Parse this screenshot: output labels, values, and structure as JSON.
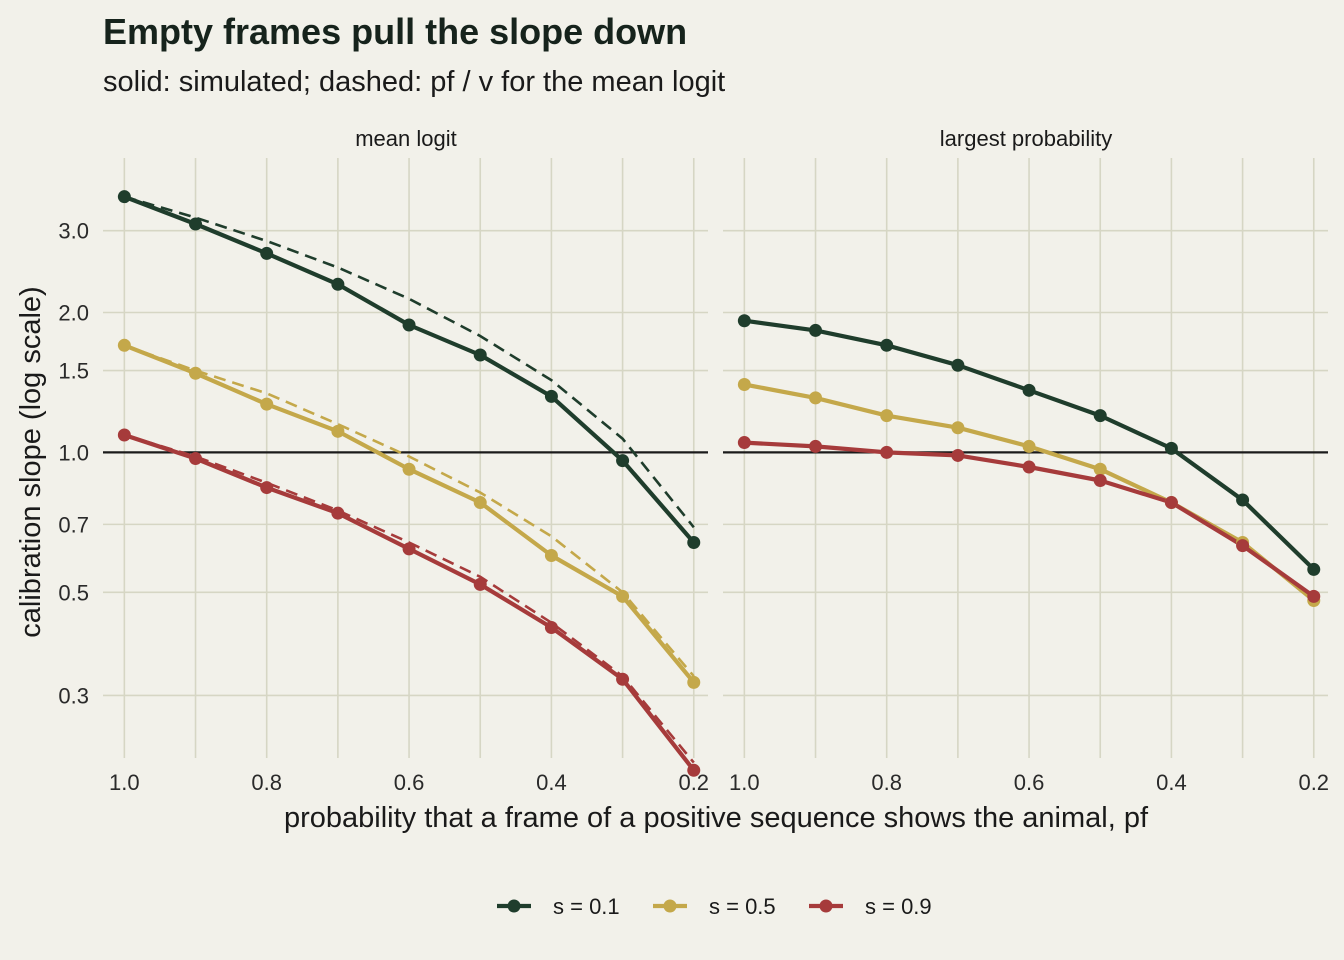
{
  "chart_data": {
    "type": "line",
    "title": "Empty frames pull the slope down",
    "subtitle": "solid: simulated; dashed: pf / v for the mean logit",
    "xlabel": "probability that a frame of a positive sequence shows the animal, pf",
    "ylabel": "calibration slope (log scale)",
    "y_scale": "log",
    "x_reversed": true,
    "xlim": [
      1.03,
      0.18
    ],
    "ylim": [
      0.22,
      4.3
    ],
    "x_ticks": [
      1.0,
      0.8,
      0.6,
      0.4,
      0.2
    ],
    "x_tick_labels": [
      "1.0",
      "0.8",
      "0.6",
      "0.4",
      "0.2"
    ],
    "y_ticks": [
      0.3,
      0.5,
      0.7,
      1.0,
      1.5,
      2.0,
      3.0
    ],
    "y_tick_labels": [
      "0.3",
      "0.5",
      "0.7",
      "1.0",
      "1.5",
      "2.0",
      "3.0"
    ],
    "reference_line": 1.0,
    "grid": true,
    "legend_position": "bottom",
    "x": [
      1.0,
      0.9,
      0.8,
      0.7,
      0.6,
      0.5,
      0.4,
      0.3,
      0.2
    ],
    "panels": [
      {
        "label": "mean logit",
        "series": [
          {
            "name": "s = 0.1",
            "color": "#1f3d2c",
            "values": [
              3.55,
              3.1,
              2.68,
              2.3,
              1.88,
              1.62,
              1.32,
              0.96,
              0.64
            ]
          },
          {
            "name": "s = 0.5",
            "color": "#c4a84a",
            "values": [
              1.7,
              1.48,
              1.27,
              1.11,
              0.92,
              0.78,
              0.6,
              0.49,
              0.32
            ]
          },
          {
            "name": "s = 0.9",
            "color": "#a63b3b",
            "values": [
              1.09,
              0.97,
              0.84,
              0.74,
              0.62,
              0.52,
              0.42,
              0.325,
              0.207
            ]
          }
        ],
        "dashed": [
          {
            "color": "#1f3d2c",
            "values": [
              3.55,
              3.2,
              2.85,
              2.5,
              2.14,
              1.78,
              1.43,
              1.07,
              0.69
            ]
          },
          {
            "color": "#c4a84a",
            "values": [
              1.7,
              1.5,
              1.34,
              1.15,
              0.98,
              0.82,
              0.66,
              0.5,
              0.33
            ]
          },
          {
            "color": "#a63b3b",
            "values": [
              1.09,
              0.98,
              0.86,
              0.75,
              0.64,
              0.54,
              0.43,
              0.33,
              0.215
            ]
          }
        ]
      },
      {
        "label": "largest probability",
        "series": [
          {
            "name": "s = 0.1",
            "color": "#1f3d2c",
            "values": [
              1.92,
              1.83,
              1.7,
              1.54,
              1.36,
              1.2,
              1.02,
              0.79,
              0.56
            ]
          },
          {
            "name": "s = 0.5",
            "color": "#c4a84a",
            "values": [
              1.4,
              1.31,
              1.2,
              1.13,
              1.03,
              0.92,
              0.78,
              0.64,
              0.48
            ]
          },
          {
            "name": "s = 0.9",
            "color": "#a63b3b",
            "values": [
              1.05,
              1.03,
              1.0,
              0.985,
              0.93,
              0.87,
              0.78,
              0.63,
              0.49
            ]
          }
        ],
        "dashed": []
      }
    ],
    "legend": [
      {
        "name": "s = 0.1",
        "color": "#1f3d2c"
      },
      {
        "name": "s = 0.5",
        "color": "#c4a84a"
      },
      {
        "name": "s = 0.9",
        "color": "#a63b3b"
      }
    ]
  }
}
